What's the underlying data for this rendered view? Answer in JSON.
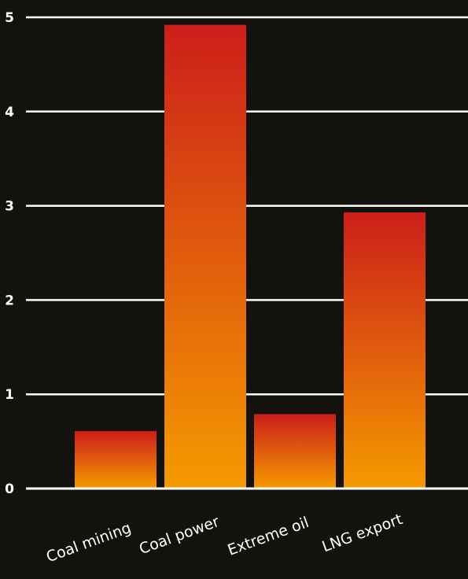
{
  "chart_data": {
    "type": "bar",
    "title": "",
    "xlabel": "",
    "ylabel": "",
    "categories": [
      "Coal mining",
      "Coal power",
      "Extreme oil",
      "LNG export"
    ],
    "values": [
      0.61,
      4.92,
      0.79,
      2.93
    ],
    "ylim": [
      0,
      5
    ],
    "yticks": [
      "0",
      "1",
      "2",
      "3",
      "4",
      "5"
    ],
    "grid": true,
    "legend": "none",
    "colors": {
      "background": "#14120f",
      "bar_top": "#cc1e1a",
      "bar_bottom": "#f59a00",
      "grid": "#ffffff",
      "text": "#ffffff"
    }
  }
}
